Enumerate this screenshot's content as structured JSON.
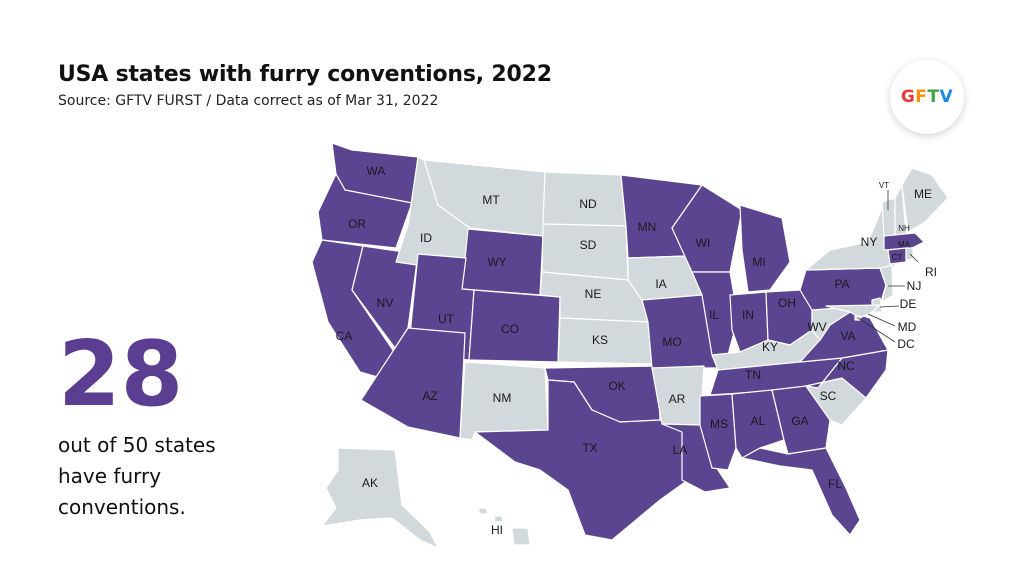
{
  "header": {
    "title": "USA states with furry conventions, 2022",
    "subtitle": "Source: GFTV FURST / Data correct as of Mar 31, 2022"
  },
  "logo": {
    "letters": [
      "G",
      "F",
      "T",
      "V"
    ],
    "colors": [
      "#e53935",
      "#fb8c00",
      "#43a047",
      "#1e88e5"
    ]
  },
  "stat": {
    "value": "28",
    "line1": "out of 50 states",
    "line2": "have furry",
    "line3": "conventions."
  },
  "colors": {
    "with_conventions": "#5b4591",
    "without_conventions": "#d2d9dc"
  },
  "states": [
    {
      "abbr": "WA",
      "has": true
    },
    {
      "abbr": "OR",
      "has": true
    },
    {
      "abbr": "CA",
      "has": true
    },
    {
      "abbr": "NV",
      "has": true
    },
    {
      "abbr": "ID",
      "has": false
    },
    {
      "abbr": "MT",
      "has": false
    },
    {
      "abbr": "WY",
      "has": true
    },
    {
      "abbr": "UT",
      "has": true
    },
    {
      "abbr": "CO",
      "has": true
    },
    {
      "abbr": "AZ",
      "has": true
    },
    {
      "abbr": "NM",
      "has": false
    },
    {
      "abbr": "ND",
      "has": false
    },
    {
      "abbr": "SD",
      "has": false
    },
    {
      "abbr": "NE",
      "has": false
    },
    {
      "abbr": "KS",
      "has": false
    },
    {
      "abbr": "OK",
      "has": true
    },
    {
      "abbr": "TX",
      "has": true
    },
    {
      "abbr": "MN",
      "has": true
    },
    {
      "abbr": "IA",
      "has": false
    },
    {
      "abbr": "MO",
      "has": true
    },
    {
      "abbr": "AR",
      "has": false
    },
    {
      "abbr": "LA",
      "has": true
    },
    {
      "abbr": "WI",
      "has": true
    },
    {
      "abbr": "IL",
      "has": true
    },
    {
      "abbr": "MI",
      "has": true
    },
    {
      "abbr": "IN",
      "has": true
    },
    {
      "abbr": "OH",
      "has": true
    },
    {
      "abbr": "KY",
      "has": false
    },
    {
      "abbr": "TN",
      "has": true
    },
    {
      "abbr": "MS",
      "has": true
    },
    {
      "abbr": "AL",
      "has": true
    },
    {
      "abbr": "GA",
      "has": true
    },
    {
      "abbr": "FL",
      "has": true
    },
    {
      "abbr": "SC",
      "has": false
    },
    {
      "abbr": "NC",
      "has": true
    },
    {
      "abbr": "VA",
      "has": true
    },
    {
      "abbr": "WV",
      "has": false
    },
    {
      "abbr": "PA",
      "has": true
    },
    {
      "abbr": "NY",
      "has": false
    },
    {
      "abbr": "VT",
      "has": false
    },
    {
      "abbr": "NH",
      "has": false
    },
    {
      "abbr": "ME",
      "has": false
    },
    {
      "abbr": "MA",
      "has": true
    },
    {
      "abbr": "CT",
      "has": true
    },
    {
      "abbr": "RI",
      "has": false
    },
    {
      "abbr": "NJ",
      "has": false
    },
    {
      "abbr": "DE",
      "has": false
    },
    {
      "abbr": "MD",
      "has": false
    },
    {
      "abbr": "DC",
      "has": false
    },
    {
      "abbr": "AK",
      "has": false
    },
    {
      "abbr": "HI",
      "has": false
    }
  ]
}
